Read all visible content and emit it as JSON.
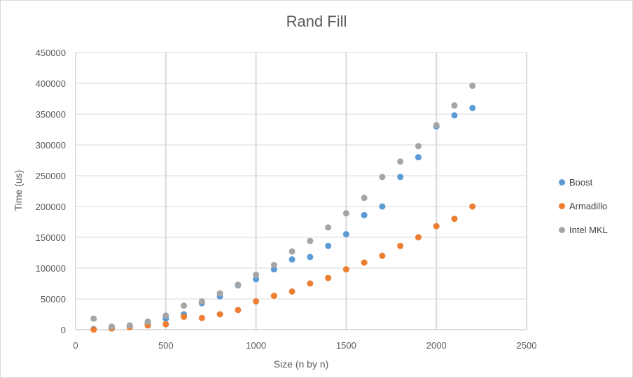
{
  "chart_data": {
    "type": "scatter",
    "title": "Rand Fill",
    "xlabel": "Size (n by n)",
    "ylabel": "Time (us)",
    "xlim": [
      0,
      2500
    ],
    "ylim": [
      0,
      450000
    ],
    "x_ticks": [
      0,
      500,
      1000,
      1500,
      2000,
      2500
    ],
    "y_ticks": [
      0,
      50000,
      100000,
      150000,
      200000,
      250000,
      300000,
      350000,
      400000,
      450000
    ],
    "grid": "major",
    "legend_position": "right",
    "x": [
      100,
      200,
      300,
      400,
      500,
      600,
      700,
      800,
      900,
      1000,
      1100,
      1200,
      1300,
      1400,
      1500,
      1600,
      1700,
      1800,
      1900,
      2000,
      2100,
      2200
    ],
    "series": [
      {
        "name": "Boost",
        "color": "#5b9bd5",
        "values": [
          1000,
          2000,
          5000,
          10000,
          18000,
          25000,
          43000,
          54000,
          72000,
          82000,
          98000,
          114000,
          118000,
          136000,
          155000,
          186000,
          200000,
          248000,
          280000,
          330000,
          348000,
          360000
        ]
      },
      {
        "name": "Armadillo",
        "color": "#ed7d31",
        "values": [
          0,
          2000,
          4000,
          7000,
          9000,
          21000,
          19000,
          25000,
          32000,
          46000,
          55000,
          62000,
          75000,
          84000,
          98000,
          109000,
          120000,
          136000,
          150000,
          168000,
          180000,
          200000
        ]
      },
      {
        "name": "Intel MKL",
        "color": "#a5a5a5",
        "values": [
          18000,
          5000,
          7000,
          13000,
          23000,
          39000,
          46000,
          59000,
          73000,
          89000,
          105000,
          127000,
          144000,
          166000,
          189000,
          214000,
          248000,
          273000,
          298000,
          332000,
          364000,
          396000
        ]
      }
    ]
  }
}
